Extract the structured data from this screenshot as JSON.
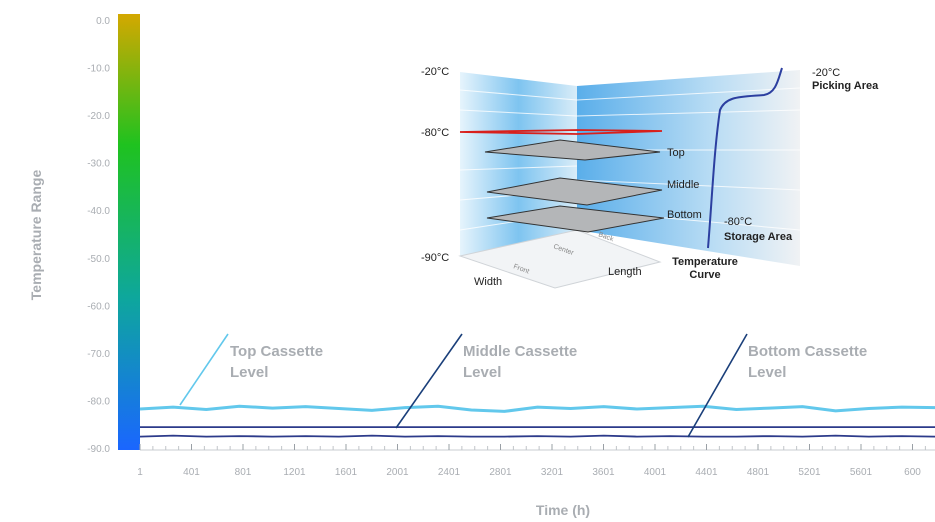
{
  "chart_data": {
    "type": "line",
    "ylabel": "Temperature Range",
    "xlabel": "Time (h)",
    "ylim": [
      0,
      -90
    ],
    "yticks": [
      "0.0",
      "-10.0",
      "-20.0",
      "-30.0",
      "-40.0",
      "-50.0",
      "-60.0",
      "-70.0",
      "-80.0",
      "-90.0"
    ],
    "xticks": [
      "1",
      "401",
      "801",
      "1201",
      "1601",
      "2001",
      "2401",
      "2801",
      "3201",
      "3601",
      "4001",
      "4401",
      "4801",
      "5201",
      "5601",
      "600"
    ],
    "series": [
      {
        "name": "Top Cassette Level",
        "color": "#62c8ec",
        "y": [
          -81.8,
          -81.4,
          -81.9,
          -81.2,
          -81.6,
          -81.3,
          -81.7,
          -82.1,
          -81.5,
          -81.2,
          -82.0,
          -82.3,
          -81.4,
          -81.7,
          -81.3,
          -81.8,
          -81.5,
          -81.2,
          -81.9,
          -81.6,
          -81.3,
          -82.2,
          -81.7,
          -81.4,
          -81.5
        ]
      },
      {
        "name": "Middle Cassette Level",
        "color": "#2c3a8a",
        "y": [
          -85.6,
          -85.6,
          -85.6,
          -85.6,
          -85.6,
          -85.6,
          -85.6,
          -85.6,
          -85.6,
          -85.6,
          -85.6,
          -85.6,
          -85.6,
          -85.6,
          -85.6,
          -85.6,
          -85.6,
          -85.6,
          -85.6,
          -85.6,
          -85.6,
          -85.6,
          -85.6,
          -85.6,
          -85.6
        ]
      },
      {
        "name": "Bottom Cassette Level",
        "color": "#2c3a8a",
        "y": [
          -87.6,
          -87.4,
          -87.6,
          -87.5,
          -87.6,
          -87.5,
          -87.6,
          -87.4,
          -87.6,
          -87.5,
          -87.6,
          -87.6,
          -87.5,
          -87.6,
          -87.4,
          -87.6,
          -87.5,
          -87.6,
          -87.6,
          -87.5,
          -87.6,
          -87.4,
          -87.6,
          -87.5,
          -87.6
        ]
      }
    ],
    "callouts": [
      {
        "line1": "Top Cassette",
        "line2": "Level",
        "color": "#62c8ec"
      },
      {
        "line1": "Middle Cassette",
        "line2": "Level",
        "color": "#1a3f7a"
      },
      {
        "line1": "Bottom Cassette",
        "line2": "Level",
        "color": "#1a3f7a"
      }
    ],
    "colorbar": {
      "top": "#d4a800",
      "mid": "#1fc21f",
      "bottom": "#1a66ff"
    }
  },
  "inset": {
    "left_labels": [
      "-20°C",
      "-80°C",
      "-90°C"
    ],
    "levels": [
      "Top",
      "Middle",
      "Bottom"
    ],
    "right_top_temp": "-20°C",
    "right_top_area": "Picking Area",
    "right_mid_temp": "-80°C",
    "right_mid_area": "Storage Area",
    "curve_line1": "Temperature",
    "curve_line2": "Curve",
    "axis_width": "Width",
    "axis_length": "Length",
    "floor_labels": [
      "Front",
      "Center",
      "Back"
    ]
  }
}
